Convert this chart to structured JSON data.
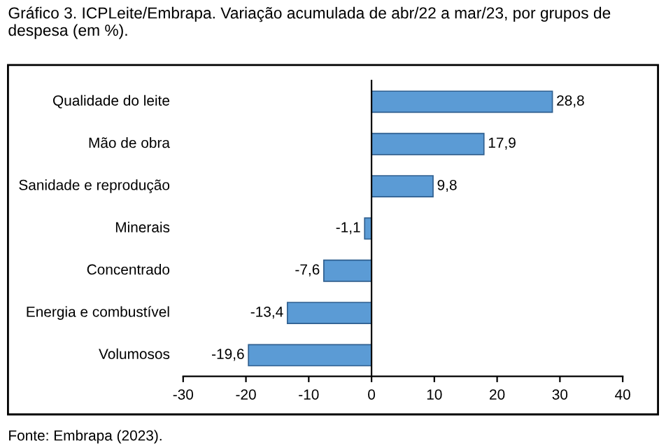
{
  "chart_data": {
    "type": "bar",
    "orientation": "horizontal",
    "title": "Gráfico 3. ICPLeite/Embrapa. Variação acumulada de abr/22 a mar/23, por grupos de despesa (em %).",
    "categories": [
      "Qualidade do leite",
      "Mão de obra",
      "Sanidade e reprodução",
      "Minerais",
      "Concentrado",
      "Energia e combustível",
      "Volumosos"
    ],
    "values": [
      28.8,
      17.9,
      9.8,
      -1.1,
      -7.6,
      -13.4,
      -19.6
    ],
    "value_labels": [
      "28,8",
      "17,9",
      "9,8",
      "-1,1",
      "-7,6",
      "-13,4",
      "-19,6"
    ],
    "color": "#5b9bd5",
    "xlim": [
      -30,
      40
    ],
    "xticks": [
      -30,
      -20,
      -10,
      0,
      10,
      20,
      30,
      40
    ],
    "annotations": [
      "Fonte: Embrapa (2023)."
    ]
  }
}
